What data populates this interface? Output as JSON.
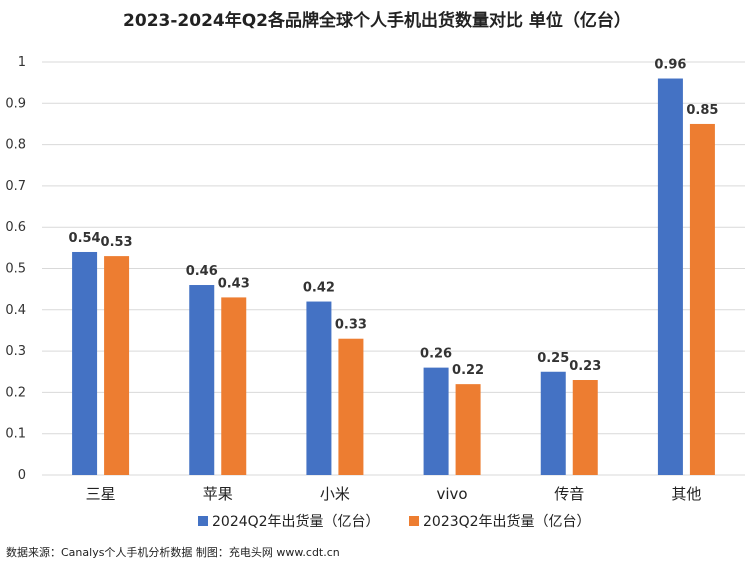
{
  "chart_data": {
    "type": "bar",
    "title": "2023-2024年Q2各品牌全球个人手机出货数量对比 单位（亿台）",
    "categories": [
      "三星",
      "苹果",
      "小米",
      "vivo",
      "传音",
      "其他"
    ],
    "series": [
      {
        "name": "2024Q2年出货量（亿台）",
        "color": "#4472C4",
        "values": [
          0.54,
          0.46,
          0.42,
          0.26,
          0.25,
          0.96
        ]
      },
      {
        "name": "2023Q2年出货量（亿台）",
        "color": "#ED7D31",
        "values": [
          0.53,
          0.43,
          0.33,
          0.22,
          0.23,
          0.85
        ]
      }
    ],
    "ylim": [
      0,
      1
    ],
    "yticks": [
      0,
      0.1,
      0.2,
      0.3,
      0.4,
      0.5,
      0.6,
      0.7,
      0.8,
      0.9,
      1
    ],
    "ytick_labels": [
      "0",
      "0.1",
      "0.2",
      "0.3",
      "0.4",
      "0.5",
      "0.6",
      "0.7",
      "0.8",
      "0.9",
      "1"
    ],
    "grid": true,
    "legend_position": "bottom"
  },
  "source_note": "数据来源：Canalys个人手机分析数据  制图：充电头网 www.cdt.cn"
}
